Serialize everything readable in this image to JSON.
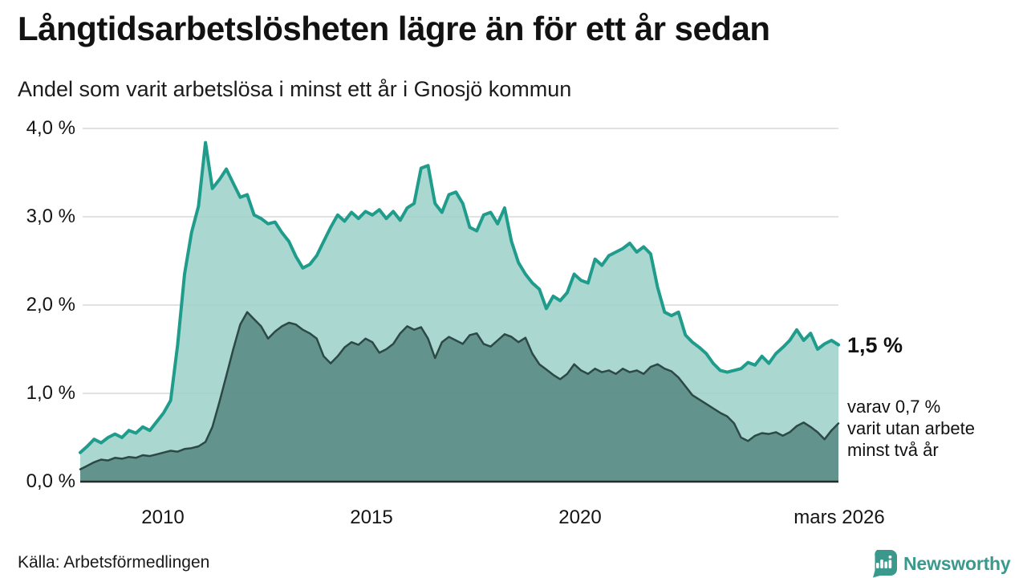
{
  "header": {
    "title": "Långtidsarbetslösheten lägre än för ett år sedan",
    "subtitle": "Andel som varit arbetslösa i minst ett år i Gnosjö kommun"
  },
  "chart_data": {
    "type": "area",
    "title": "Andel som varit arbetslösa i minst ett år i Gnosjö kommun",
    "x_start_year": 2008.0,
    "x_end_year": 2026.17,
    "x_step_years": 0.1667,
    "ylim": [
      0,
      4
    ],
    "grid": true,
    "legend_position": "none",
    "grid_color": "#d8d8d8",
    "axis_color": "#2b2b2b",
    "ytick_values": [
      0,
      1,
      2,
      3,
      4
    ],
    "ytick_labels_top_down": [
      "4,0 %",
      "3,0 %",
      "2,0 %",
      "1,0 %",
      "0,0 %"
    ],
    "xtick_labels": [
      "2010",
      "2015",
      "2020",
      "mars 2026"
    ],
    "xtick_years": [
      2010,
      2015,
      2020,
      2026.17
    ],
    "series": [
      {
        "name": "arbetslösa minst ett år",
        "line_color": "#1f9c8c",
        "line_width": 4,
        "fill_color": "#9bd1c8",
        "fill_opacity": 0.85,
        "end_value_label": "1,5 %",
        "values": [
          0.33,
          0.4,
          0.48,
          0.44,
          0.5,
          0.54,
          0.5,
          0.58,
          0.55,
          0.62,
          0.58,
          0.68,
          0.78,
          0.92,
          1.55,
          2.35,
          2.82,
          3.12,
          3.84,
          3.32,
          3.42,
          3.54,
          3.38,
          3.22,
          3.25,
          3.02,
          2.98,
          2.92,
          2.94,
          2.82,
          2.72,
          2.55,
          2.42,
          2.46,
          2.56,
          2.72,
          2.88,
          3.02,
          2.95,
          3.05,
          2.98,
          3.06,
          3.02,
          3.08,
          2.98,
          3.06,
          2.96,
          3.1,
          3.15,
          3.55,
          3.58,
          3.15,
          3.05,
          3.25,
          3.28,
          3.15,
          2.88,
          2.84,
          3.02,
          3.05,
          2.92,
          3.1,
          2.72,
          2.48,
          2.35,
          2.25,
          2.18,
          1.96,
          2.1,
          2.05,
          2.14,
          2.35,
          2.28,
          2.25,
          2.52,
          2.45,
          2.56,
          2.6,
          2.64,
          2.7,
          2.6,
          2.66,
          2.58,
          2.2,
          1.92,
          1.88,
          1.92,
          1.66,
          1.58,
          1.52,
          1.45,
          1.34,
          1.26,
          1.24,
          1.26,
          1.28,
          1.35,
          1.32,
          1.42,
          1.34,
          1.45,
          1.52,
          1.6,
          1.72,
          1.6,
          1.68,
          1.5,
          1.56,
          1.6,
          1.55
        ]
      },
      {
        "name": "varav arbetslösa minst två år",
        "line_color": "#2c4945",
        "line_width": 2.5,
        "fill_color": "#5a8c84",
        "fill_opacity": 0.9,
        "end_value_label": "0,7 %",
        "values": [
          0.14,
          0.18,
          0.22,
          0.25,
          0.24,
          0.27,
          0.26,
          0.28,
          0.27,
          0.3,
          0.29,
          0.31,
          0.33,
          0.35,
          0.34,
          0.37,
          0.38,
          0.4,
          0.45,
          0.62,
          0.9,
          1.2,
          1.5,
          1.78,
          1.92,
          1.84,
          1.76,
          1.62,
          1.7,
          1.76,
          1.8,
          1.78,
          1.72,
          1.68,
          1.62,
          1.42,
          1.34,
          1.42,
          1.52,
          1.58,
          1.55,
          1.62,
          1.58,
          1.46,
          1.5,
          1.56,
          1.68,
          1.76,
          1.72,
          1.75,
          1.62,
          1.4,
          1.58,
          1.64,
          1.6,
          1.56,
          1.66,
          1.68,
          1.56,
          1.53,
          1.6,
          1.67,
          1.64,
          1.58,
          1.63,
          1.45,
          1.33,
          1.27,
          1.21,
          1.16,
          1.22,
          1.33,
          1.26,
          1.22,
          1.28,
          1.24,
          1.26,
          1.22,
          1.28,
          1.24,
          1.26,
          1.22,
          1.3,
          1.33,
          1.28,
          1.25,
          1.18,
          1.08,
          0.98,
          0.93,
          0.88,
          0.83,
          0.78,
          0.74,
          0.66,
          0.5,
          0.46,
          0.52,
          0.55,
          0.54,
          0.56,
          0.52,
          0.56,
          0.63,
          0.67,
          0.62,
          0.56,
          0.48,
          0.58,
          0.66
        ]
      }
    ],
    "annotations": {
      "primary_value": "1,5 %",
      "secondary_lines": [
        "varav 0,7 %",
        "varit utan arbete",
        "minst två år"
      ]
    }
  },
  "footer": {
    "source": "Källa: Arbetsförmedlingen",
    "brand": "Newsworthy",
    "brand_color": "#3a998c"
  }
}
